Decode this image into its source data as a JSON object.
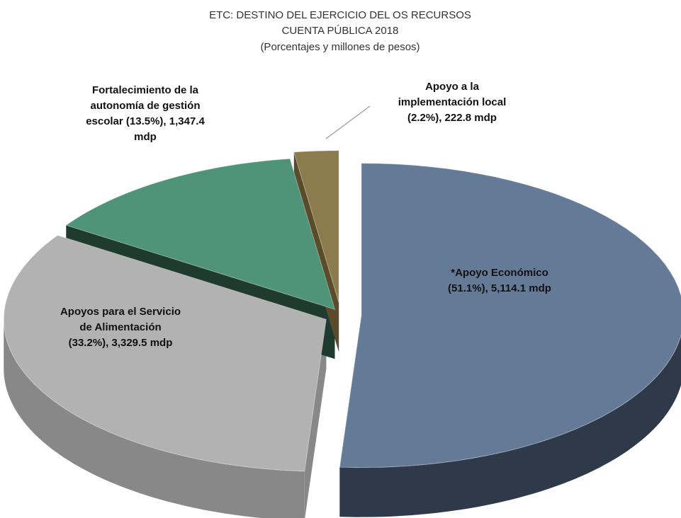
{
  "chart_data": {
    "type": "pie",
    "title": [
      "ETC: DESTINO DEL EJERCICIO DEL OS RECURSOS",
      "CUENTA PÚBLICA 2018"
    ],
    "subtitle": "(Porcentajes y millones de pesos)",
    "values": [
      5114.1,
      3329.5,
      1347.4,
      222.8
    ],
    "value_labels": [
      [
        "*Apoyo Económico",
        "(51.1%), 5,114.1 mdp"
      ],
      [
        "Apoyos para el Servicio",
        "de Alimentación",
        "(33.2%), 3,329.5 mdp"
      ],
      [
        "Fortalecimiento de la",
        "autonomía de gestión",
        "escolar (13.5%), 1,347.4",
        "mdp"
      ],
      [
        "Apoyo a la",
        "implementación local",
        "(2.2%), 222.8 mdp"
      ]
    ],
    "colors": [
      "#647a96",
      "#b2b2b2",
      "#4f9478",
      "#8c7b4c"
    ],
    "side_colors": [
      "#2e3a4a",
      "#888888",
      "#1f3b2f",
      "#5a4c2b"
    ]
  }
}
